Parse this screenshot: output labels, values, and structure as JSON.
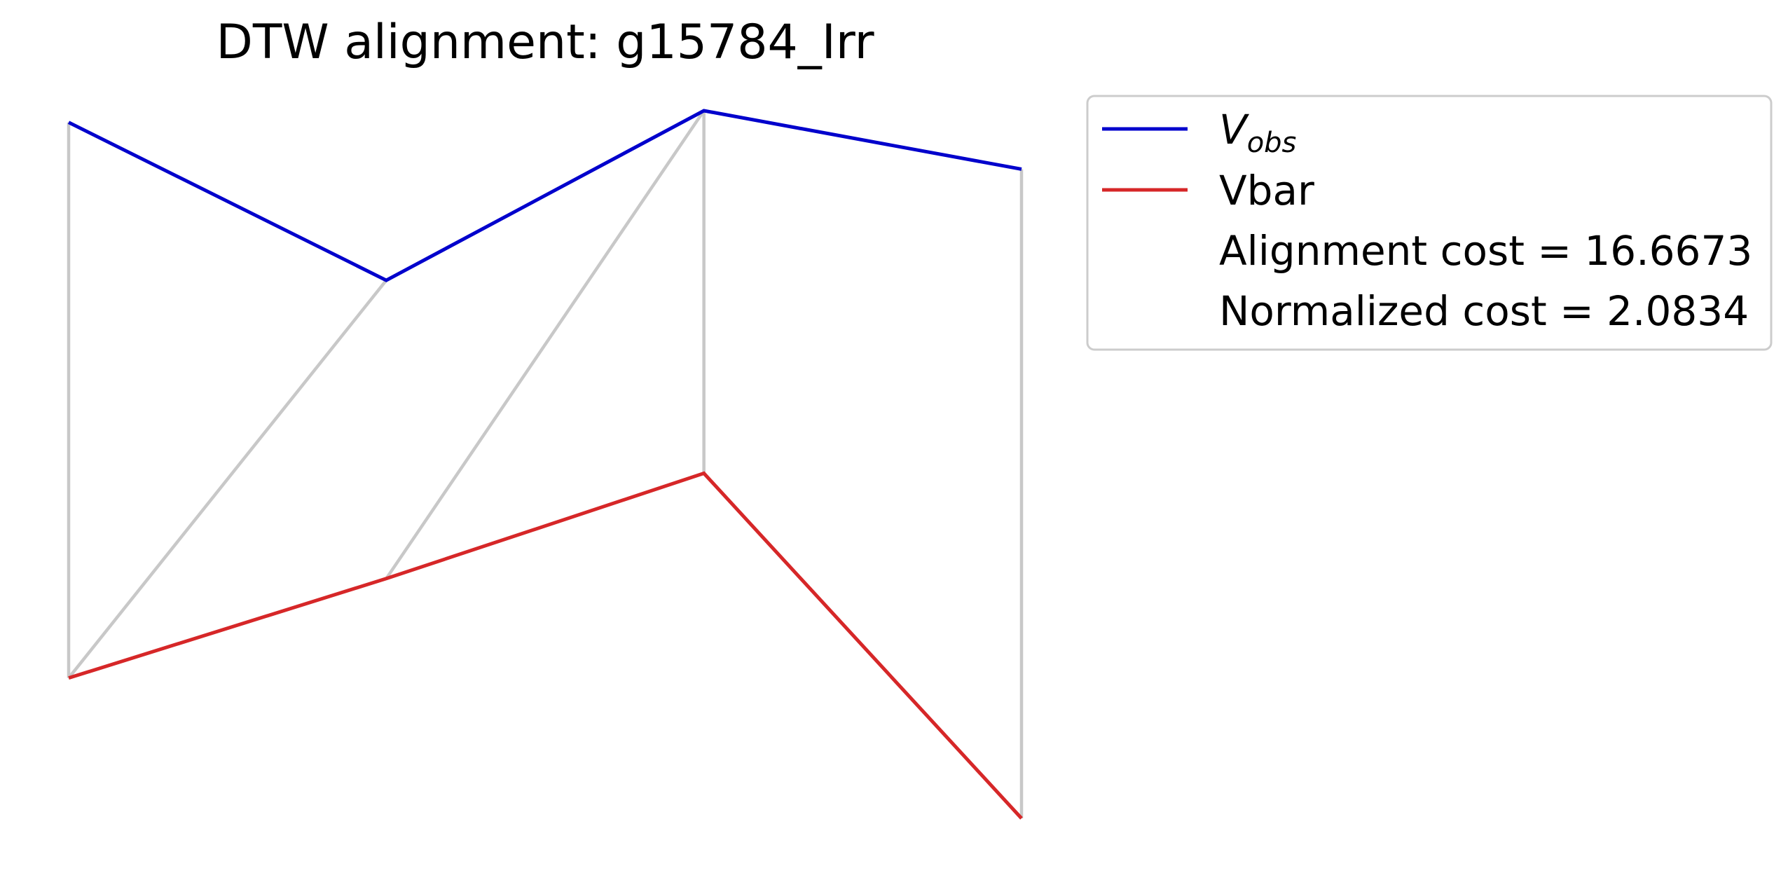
{
  "chart_data": {
    "type": "line",
    "title": "DTW alignment: g15784_Irr",
    "x": [
      0,
      1,
      2,
      3
    ],
    "series": [
      {
        "name": "V_obs",
        "label_main": "V",
        "label_sub": "obs",
        "color": "#0000cc",
        "values": [
          0.95,
          0.68,
          0.97,
          0.87
        ]
      },
      {
        "name": "Vbar",
        "color": "#d62728",
        "values": [
          0.0,
          0.17,
          0.35,
          -0.24
        ]
      }
    ],
    "alignment_path": [
      [
        0,
        0
      ],
      [
        1,
        0
      ],
      [
        2,
        1
      ],
      [
        2,
        2
      ],
      [
        3,
        3
      ]
    ],
    "alignment_color": "#c8c8c8",
    "legend_extra": [
      "Alignment cost = 16.6673",
      "Normalized cost = 2.0834"
    ],
    "ylim": [
      -0.24,
      0.97
    ],
    "xlim": [
      0,
      3
    ],
    "grid": false,
    "axes_visible": false,
    "legend_position": "top-right outside"
  }
}
